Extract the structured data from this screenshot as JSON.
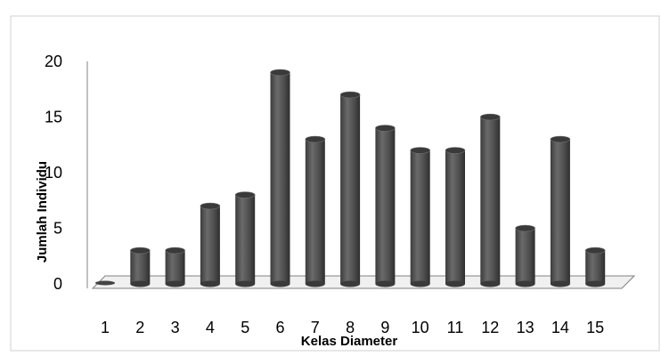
{
  "chart_data": {
    "type": "bar",
    "style": "3d-cylinder",
    "title": "",
    "xlabel": "Kelas Diameter",
    "ylabel": "Jumlah Individu",
    "categories": [
      "1",
      "2",
      "3",
      "4",
      "5",
      "6",
      "7",
      "8",
      "9",
      "10",
      "11",
      "12",
      "13",
      "14",
      "15"
    ],
    "values": [
      0,
      3,
      3,
      7,
      8,
      19,
      13,
      17,
      14,
      12,
      12,
      15,
      5,
      13,
      3
    ],
    "ylim": [
      0,
      20
    ],
    "yticks": [
      "0",
      "5",
      "10",
      "15",
      "20"
    ],
    "grid": false,
    "legend": "none",
    "colors": {
      "bar": "#555555",
      "bar_top": "#3a3a3a",
      "floor": "#f0f0f0",
      "axis": "#808080",
      "frame": "#d0d0d0"
    }
  }
}
